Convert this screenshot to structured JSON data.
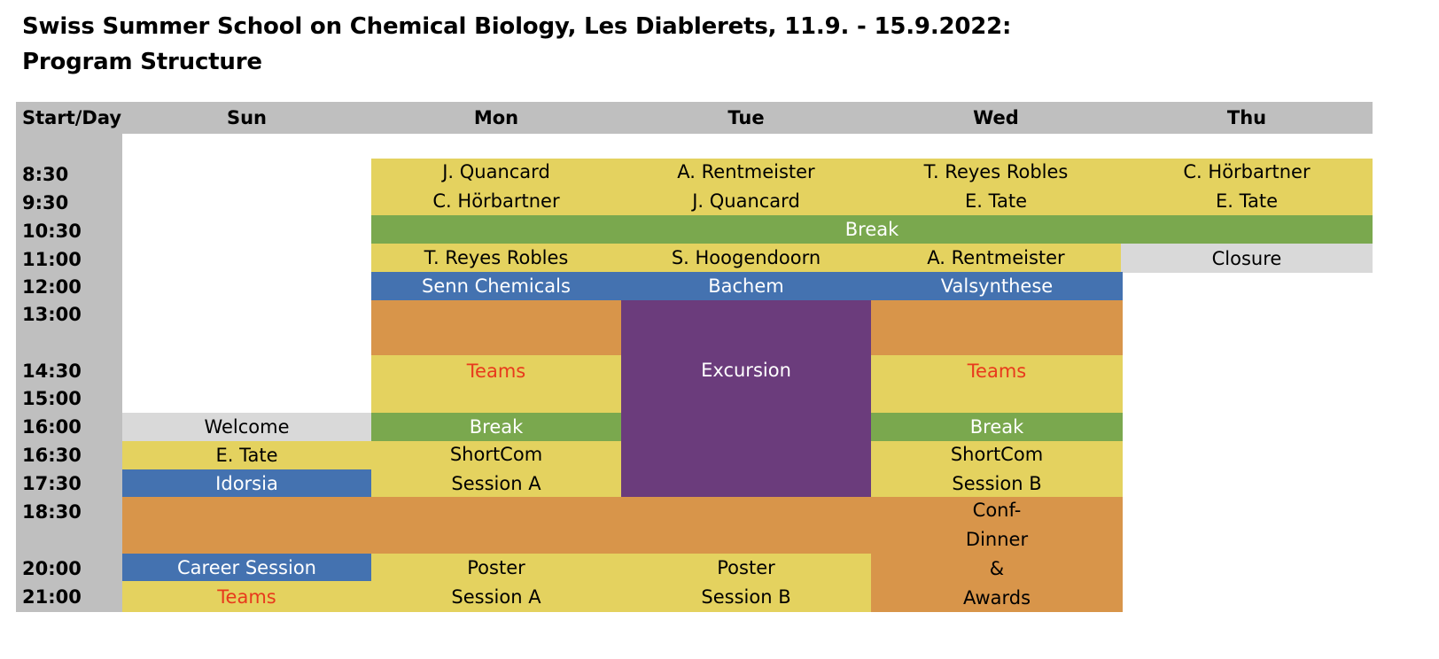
{
  "title": {
    "line1": "Swiss Summer School on Chemical Biology, Les Diablerets, 11.9. - 15.9.2022:",
    "line2": "Program Structure"
  },
  "header": {
    "corner": "Start/Day",
    "days": [
      "Sun",
      "Mon",
      "Tue",
      "Wed",
      "Thu"
    ]
  },
  "times": [
    "8:30",
    "9:30",
    "10:30",
    "11:00",
    "12:00",
    "13:00",
    "14:30",
    "15:00",
    "16:00",
    "16:30",
    "17:30",
    "18:30",
    "20:00",
    "21:00"
  ],
  "colors": {
    "grey": "#bfbfbf",
    "light_grey": "#d9d9d9",
    "yellow": "#e4d25f",
    "green": "#7aa84e",
    "blue": "#4472b0",
    "orange": "#d8954a",
    "purple": "#6b3c7c",
    "red_text": "#e8391c"
  },
  "sessions": {
    "mon_830": "J. Quancard",
    "mon_930": "C. Hörbartner",
    "tue_830": "A. Rentmeister",
    "tue_930": "J. Quancard",
    "wed_830": "T. Reyes Robles",
    "wed_930": "E. Tate",
    "thu_830": "C. Hörbartner",
    "thu_930": "E. Tate",
    "break_morning": "Break",
    "mon_1100": "T. Reyes Robles",
    "tue_1100": "S. Hoogendoorn",
    "wed_1100": "A. Rentmeister",
    "thu_closure": "Closure",
    "mon_1200": "Senn Chemicals",
    "tue_1200": "Bachem",
    "wed_1200": "Valsynthese",
    "mon_teams": "Teams",
    "tue_excursion": "Excursion",
    "wed_teams": "Teams",
    "sun_welcome": "Welcome",
    "mon_break": "Break",
    "wed_break": "Break",
    "sun_1630": "E. Tate",
    "sun_1730": "Idorsia",
    "mon_shortcom_1": "ShortCom",
    "mon_shortcom_2": "Session A",
    "wed_shortcom_1": "ShortCom",
    "wed_shortcom_2": "Session B",
    "wed_dinner_1": "Conf-",
    "wed_dinner_2": "Dinner",
    "wed_dinner_3": "&",
    "wed_dinner_4": "Awards",
    "sun_career": "Career Session",
    "sun_teams": "Teams",
    "mon_poster_1": "Poster",
    "mon_poster_2": "Session A",
    "tue_poster_1": "Poster",
    "tue_poster_2": "Session B"
  }
}
